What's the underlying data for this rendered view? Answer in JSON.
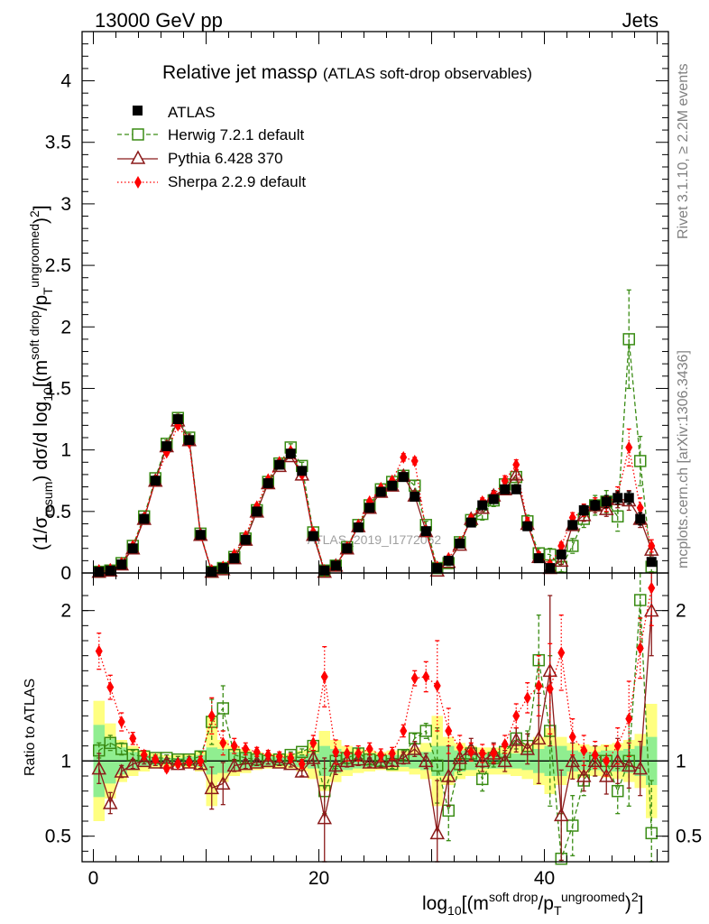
{
  "header": {
    "energy_label": "13000 GeV pp",
    "process_label": "Jets",
    "plot_title": "Relative jet mass",
    "plot_title_symbol": "ρ",
    "plot_subtitle": "(ATLAS soft-drop observables)",
    "watermark": "ATLAS_2019_I1772062"
  },
  "side_labels": {
    "rivet": "Rivet 3.1.10, ≥ 2.2M events",
    "mcplots": "mcplots.cern.ch [arXiv:1306.3436]"
  },
  "colors": {
    "atlas": "#000000",
    "herwig": "#3a8c14",
    "pythia": "#8b1a1a",
    "sherpa": "#ff0000",
    "band_inner": "#90ee90",
    "band_outer": "#ffff80"
  },
  "chart_data": [
    {
      "type": "scatter",
      "panel": "main",
      "xlim": [
        -1,
        51
      ],
      "ylim": [
        0,
        4.4
      ],
      "xlabel": "log10[(m^{soft drop}/p_T^{ungroomed})^2]",
      "ylabel": "(1/σ_resum) dσ/d log10[(m^{soft drop}/p_T^{ungroomed})^2]",
      "y_ticks": [
        "0",
        "0.5",
        "1",
        "1.5",
        "2",
        "2.5",
        "3",
        "3.5",
        "4"
      ],
      "x": [
        0.5,
        1.5,
        2.5,
        3.5,
        4.5,
        5.5,
        6.5,
        7.5,
        8.5,
        9.5,
        10.5,
        11.5,
        12.5,
        13.5,
        14.5,
        15.5,
        16.5,
        17.5,
        18.5,
        19.5,
        20.5,
        21.5,
        22.5,
        23.5,
        24.5,
        25.5,
        26.5,
        27.5,
        28.5,
        29.5,
        30.5,
        31.5,
        32.5,
        33.5,
        34.5,
        35.5,
        36.5,
        37.5,
        38.5,
        39.5,
        40.5,
        41.5,
        42.5,
        43.5,
        44.5,
        45.5,
        46.5,
        47.5,
        48.5,
        49.5
      ],
      "series": [
        {
          "name": "ATLAS",
          "marker": "filled-square",
          "values": [
            0.01,
            0.02,
            0.07,
            0.2,
            0.44,
            0.75,
            1.03,
            1.25,
            1.08,
            0.31,
            0.01,
            0.04,
            0.12,
            0.27,
            0.5,
            0.73,
            0.88,
            0.97,
            0.83,
            0.3,
            0.02,
            0.06,
            0.2,
            0.37,
            0.53,
            0.66,
            0.71,
            0.78,
            0.62,
            0.34,
            0.04,
            0.1,
            0.24,
            0.41,
            0.55,
            0.6,
            0.68,
            0.68,
            0.38,
            0.12,
            0.04,
            0.15,
            0.39,
            0.51,
            0.55,
            0.58,
            0.61,
            0.61,
            0.44,
            0.09
          ],
          "errors": [
            0.01,
            0.01,
            0.01,
            0.01,
            0.02,
            0.02,
            0.02,
            0.02,
            0.02,
            0.02,
            0.01,
            0.01,
            0.01,
            0.01,
            0.02,
            0.02,
            0.02,
            0.02,
            0.02,
            0.02,
            0.01,
            0.01,
            0.01,
            0.02,
            0.02,
            0.02,
            0.02,
            0.03,
            0.03,
            0.03,
            0.01,
            0.01,
            0.02,
            0.03,
            0.03,
            0.03,
            0.03,
            0.03,
            0.03,
            0.02,
            0.02,
            0.02,
            0.03,
            0.04,
            0.04,
            0.05,
            0.05,
            0.05,
            0.05,
            0.03
          ]
        },
        {
          "name": "Herwig 7.2.1 default",
          "marker": "open-square",
          "line": "dashed",
          "values": [
            0.01,
            0.02,
            0.08,
            0.22,
            0.46,
            0.77,
            1.05,
            1.26,
            1.1,
            0.32,
            0.01,
            0.04,
            0.13,
            0.28,
            0.51,
            0.74,
            0.89,
            1.02,
            0.87,
            0.33,
            0.02,
            0.06,
            0.21,
            0.39,
            0.55,
            0.68,
            0.74,
            0.79,
            0.71,
            0.39,
            0.04,
            0.08,
            0.25,
            0.43,
            0.48,
            0.59,
            0.72,
            0.78,
            0.42,
            0.16,
            0.15,
            0.05,
            0.22,
            0.44,
            0.55,
            0.58,
            0.46,
            1.9,
            0.91,
            0.05
          ],
          "errors": [
            0.0,
            0.01,
            0.01,
            0.01,
            0.02,
            0.02,
            0.03,
            0.03,
            0.03,
            0.02,
            0.01,
            0.01,
            0.01,
            0.02,
            0.02,
            0.03,
            0.03,
            0.03,
            0.03,
            0.02,
            0.01,
            0.01,
            0.02,
            0.02,
            0.03,
            0.03,
            0.03,
            0.04,
            0.04,
            0.03,
            0.01,
            0.02,
            0.03,
            0.04,
            0.05,
            0.05,
            0.05,
            0.06,
            0.05,
            0.04,
            0.05,
            0.04,
            0.06,
            0.07,
            0.08,
            0.09,
            0.12,
            0.4,
            0.2,
            0.04
          ]
        },
        {
          "name": "Pythia 6.428 370",
          "marker": "open-triangle",
          "line": "solid",
          "values": [
            0.01,
            0.02,
            0.07,
            0.2,
            0.44,
            0.75,
            1.03,
            1.24,
            1.08,
            0.31,
            0.01,
            0.03,
            0.12,
            0.27,
            0.5,
            0.73,
            0.87,
            0.95,
            0.8,
            0.31,
            0.01,
            0.06,
            0.2,
            0.38,
            0.53,
            0.66,
            0.71,
            0.79,
            0.63,
            0.34,
            0.02,
            0.09,
            0.23,
            0.44,
            0.53,
            0.63,
            0.68,
            0.8,
            0.4,
            0.13,
            0.04,
            0.1,
            0.39,
            0.47,
            0.55,
            0.52,
            0.6,
            0.59,
            0.44,
            0.19
          ],
          "errors": [
            0.0,
            0.0,
            0.01,
            0.01,
            0.02,
            0.02,
            0.02,
            0.02,
            0.02,
            0.01,
            0.0,
            0.01,
            0.01,
            0.01,
            0.02,
            0.02,
            0.02,
            0.02,
            0.02,
            0.02,
            0.0,
            0.01,
            0.01,
            0.02,
            0.02,
            0.02,
            0.02,
            0.03,
            0.03,
            0.02,
            0.01,
            0.01,
            0.02,
            0.03,
            0.03,
            0.04,
            0.04,
            0.04,
            0.04,
            0.03,
            0.02,
            0.03,
            0.04,
            0.05,
            0.06,
            0.06,
            0.07,
            0.08,
            0.07,
            0.05
          ]
        },
        {
          "name": "Sherpa 2.2.9 default",
          "marker": "filled-diamond",
          "line": "dotted",
          "values": [
            0.02,
            0.03,
            0.08,
            0.22,
            0.45,
            0.75,
            0.98,
            1.2,
            1.06,
            0.31,
            0.02,
            0.05,
            0.15,
            0.3,
            0.54,
            0.76,
            0.9,
            0.99,
            0.8,
            0.33,
            0.02,
            0.06,
            0.21,
            0.39,
            0.58,
            0.69,
            0.75,
            0.94,
            0.91,
            0.34,
            0.05,
            0.12,
            0.25,
            0.44,
            0.58,
            0.63,
            0.75,
            0.88,
            0.41,
            0.14,
            0.07,
            0.22,
            0.45,
            0.51,
            0.56,
            0.56,
            0.63,
            1.02,
            0.53,
            0.22
          ],
          "errors": [
            0.0,
            0.01,
            0.01,
            0.01,
            0.02,
            0.02,
            0.02,
            0.02,
            0.02,
            0.02,
            0.0,
            0.01,
            0.01,
            0.01,
            0.02,
            0.02,
            0.02,
            0.02,
            0.02,
            0.02,
            0.01,
            0.01,
            0.01,
            0.02,
            0.02,
            0.02,
            0.02,
            0.03,
            0.03,
            0.02,
            0.01,
            0.01,
            0.02,
            0.03,
            0.03,
            0.03,
            0.04,
            0.04,
            0.04,
            0.03,
            0.02,
            0.03,
            0.04,
            0.05,
            0.05,
            0.06,
            0.07,
            0.15,
            0.08,
            0.05
          ]
        }
      ]
    },
    {
      "type": "scatter",
      "panel": "ratio",
      "xlim": [
        -1,
        51
      ],
      "ylim": [
        0.33,
        2.25
      ],
      "ylabel": "Ratio to ATLAS",
      "x_ticks": [
        "0",
        "20",
        "40"
      ],
      "y_ticks": [
        "0.5",
        "1",
        "2"
      ],
      "reference_line": 1,
      "band_inner": [
        0.24,
        0.15,
        0.09,
        0.06,
        0.04,
        0.03,
        0.02,
        0.02,
        0.03,
        0.04,
        0.09,
        0.08,
        0.06,
        0.05,
        0.04,
        0.03,
        0.03,
        0.03,
        0.04,
        0.05,
        0.1,
        0.08,
        0.06,
        0.05,
        0.04,
        0.04,
        0.04,
        0.04,
        0.05,
        0.06,
        0.1,
        0.1,
        0.07,
        0.06,
        0.05,
        0.05,
        0.05,
        0.05,
        0.06,
        0.08,
        0.1,
        0.1,
        0.07,
        0.06,
        0.06,
        0.07,
        0.07,
        0.08,
        0.1,
        0.16
      ],
      "band_outer": [
        0.4,
        0.25,
        0.14,
        0.1,
        0.07,
        0.05,
        0.04,
        0.04,
        0.05,
        0.07,
        0.3,
        0.14,
        0.1,
        0.08,
        0.06,
        0.05,
        0.05,
        0.05,
        0.07,
        0.12,
        0.2,
        0.14,
        0.1,
        0.08,
        0.07,
        0.06,
        0.07,
        0.07,
        0.09,
        0.12,
        0.3,
        0.16,
        0.12,
        0.1,
        0.09,
        0.09,
        0.09,
        0.1,
        0.12,
        0.16,
        0.22,
        0.16,
        0.12,
        0.11,
        0.1,
        0.11,
        0.12,
        0.14,
        0.18,
        0.38
      ],
      "series": [
        {
          "name": "Herwig 7.2.1 default",
          "values": [
            1.07,
            1.12,
            1.08,
            1.04,
            1.03,
            1.02,
            1.02,
            1.01,
            1.01,
            1.03,
            1.26,
            1.35,
            1.04,
            1.02,
            1.01,
            1.0,
            1.01,
            1.04,
            1.06,
            1.1,
            0.8,
            1.0,
            1.02,
            1.05,
            1.01,
            1.0,
            0.98,
            1.04,
            1.15,
            1.2,
            0.97,
            0.67,
            0.98,
            1.05,
            0.88,
            1.02,
            1.06,
            1.15,
            1.1,
            1.67,
            1.2,
            0.35,
            0.57,
            0.87,
            1.0,
            1.0,
            0.8,
            1.0,
            2.07,
            0.52
          ],
          "errors": [
            0.05,
            0.05,
            0.04,
            0.03,
            0.02,
            0.02,
            0.02,
            0.02,
            0.02,
            0.03,
            0.15,
            0.15,
            0.04,
            0.03,
            0.02,
            0.02,
            0.02,
            0.02,
            0.02,
            0.03,
            0.15,
            0.05,
            0.04,
            0.03,
            0.03,
            0.03,
            0.03,
            0.03,
            0.03,
            0.05,
            0.25,
            0.2,
            0.07,
            0.05,
            0.08,
            0.06,
            0.06,
            0.07,
            0.1,
            0.3,
            0.5,
            0.3,
            0.2,
            0.1,
            0.1,
            0.1,
            0.15,
            0.3,
            0.3,
            0.35
          ]
        },
        {
          "name": "Pythia 6.428 370",
          "values": [
            0.95,
            0.72,
            0.93,
            0.98,
            1.0,
            0.99,
            0.99,
            0.98,
            0.99,
            0.98,
            0.82,
            0.85,
            0.97,
            0.98,
            0.99,
            1.0,
            0.99,
            0.98,
            0.93,
            1.02,
            0.62,
            0.97,
            1.0,
            1.01,
            0.99,
            0.99,
            1.0,
            1.02,
            1.08,
            1.0,
            0.52,
            0.9,
            1.02,
            1.08,
            1.0,
            1.05,
            1.0,
            1.14,
            1.08,
            1.15,
            1.6,
            0.64,
            1.0,
            0.9,
            1.0,
            0.9,
            1.0,
            0.97,
            0.95,
            2.0
          ],
          "errors": [
            0.1,
            0.07,
            0.04,
            0.03,
            0.02,
            0.02,
            0.02,
            0.02,
            0.02,
            0.03,
            0.14,
            0.14,
            0.04,
            0.03,
            0.02,
            0.02,
            0.02,
            0.02,
            0.03,
            0.05,
            0.4,
            0.06,
            0.04,
            0.04,
            0.03,
            0.03,
            0.03,
            0.04,
            0.05,
            0.05,
            0.35,
            0.2,
            0.08,
            0.07,
            0.07,
            0.07,
            0.07,
            0.08,
            0.1,
            0.3,
            0.5,
            0.3,
            0.12,
            0.1,
            0.1,
            0.12,
            0.15,
            0.15,
            0.18,
            0.3
          ]
        },
        {
          "name": "Sherpa 2.2.9 default",
          "values": [
            1.73,
            1.49,
            1.26,
            1.15,
            1.04,
            1.01,
            0.95,
            0.98,
            0.99,
            1.0,
            1.3,
            1.12,
            1.1,
            1.08,
            1.06,
            1.04,
            1.03,
            1.02,
            0.98,
            1.12,
            1.56,
            1.06,
            1.05,
            1.05,
            1.08,
            1.04,
            1.05,
            1.2,
            1.55,
            1.56,
            1.5,
            1.2,
            1.09,
            1.06,
            1.05,
            1.05,
            1.11,
            1.3,
            1.42,
            1.5,
            1.48,
            1.72,
            1.16,
            1.07,
            1.04,
            1.0,
            1.1,
            1.28,
            1.75,
            2.15
          ],
          "errors": [
            0.12,
            0.08,
            0.06,
            0.04,
            0.03,
            0.02,
            0.02,
            0.02,
            0.02,
            0.03,
            0.12,
            0.08,
            0.05,
            0.04,
            0.03,
            0.03,
            0.03,
            0.03,
            0.03,
            0.05,
            0.2,
            0.08,
            0.05,
            0.05,
            0.04,
            0.04,
            0.04,
            0.04,
            0.05,
            0.1,
            0.3,
            0.15,
            0.08,
            0.06,
            0.06,
            0.06,
            0.06,
            0.08,
            0.1,
            0.2,
            0.3,
            0.25,
            0.12,
            0.1,
            0.09,
            0.1,
            0.12,
            0.25,
            0.2,
            0.25
          ]
        }
      ]
    }
  ]
}
